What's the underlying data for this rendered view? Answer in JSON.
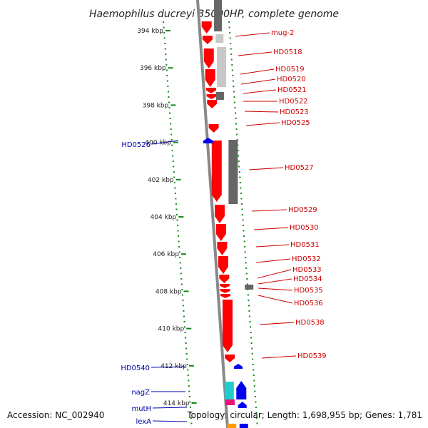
{
  "title": "Haemophilus ducreyi 35000HP, complete genome",
  "footer": {
    "accession": "Accession: NC_002940",
    "topology": "Topology: circular; Length: 1,698,955 bp; Genes: 1,781"
  },
  "colors": {
    "gene_red": "#ff0000",
    "gene_blue": "#0000ee",
    "label_red": "#cc0000",
    "label_blue": "#0000aa",
    "tick_green": "#118811",
    "backbone": "#888888",
    "dark_gray": "#666666",
    "light_gray": "#c8c8c8"
  },
  "kbp_ticks": [
    "394 kbp",
    "396 kbp",
    "398 kbp",
    "400 kbp",
    "402 kbp",
    "404 kbp",
    "406 kbp",
    "408 kbp",
    "410 kbp",
    "412 kbp",
    "414 kbp"
  ],
  "right_labels": [
    "mug-2",
    "HD0518",
    "HD0519",
    "HD0520",
    "HD0521",
    "HD0522",
    "HD0523",
    "HD0525",
    "HD0527",
    "HD0529",
    "HD0530",
    "HD0531",
    "HD0532",
    "HD0533",
    "HD0534",
    "HD0535",
    "HD0536",
    "HD0538",
    "HD0539"
  ],
  "left_labels": [
    "HD0526",
    "HD0540",
    "nagZ",
    "mutH",
    "lexA"
  ]
}
